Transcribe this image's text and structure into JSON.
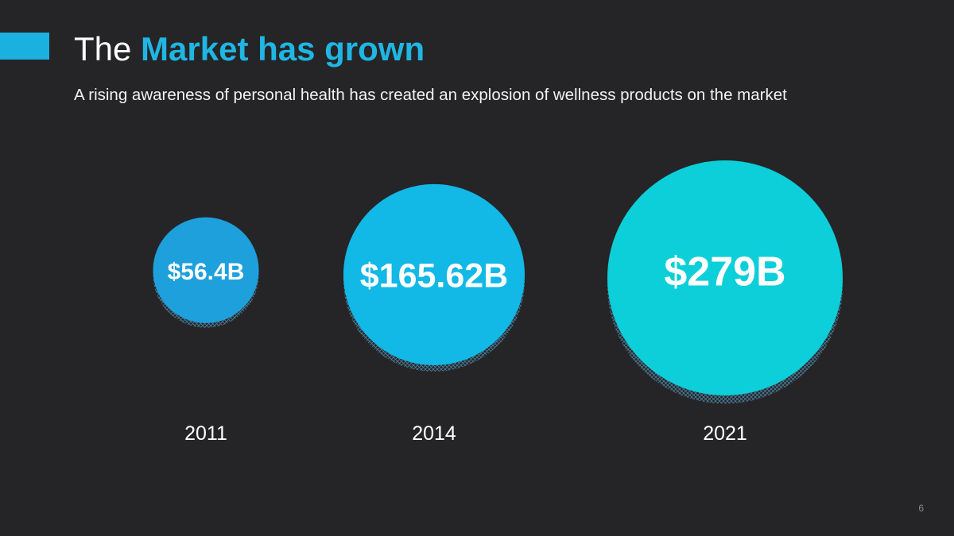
{
  "slide": {
    "title_plain": "The",
    "title_accent": "Market has grown",
    "subtitle": "A rising awareness of personal health has created an explosion of wellness products on the market",
    "page_number": "6"
  },
  "colors": {
    "background": "#252527",
    "accent": "#1ab0e0",
    "title_accent": "#1fb6e3",
    "bubble_2011": "#1ea0dc",
    "bubble_2014": "#12b8e6",
    "bubble_2021": "#0ccfd9"
  },
  "chart_data": {
    "type": "bubble",
    "title": "",
    "categories": [
      "2011",
      "2014",
      "2021"
    ],
    "values": [
      56.4,
      165.62,
      279
    ],
    "value_labels": [
      "$56.4B",
      "$165.62B",
      "$279B"
    ],
    "unit": "$B",
    "legend": "none",
    "grid": false
  }
}
